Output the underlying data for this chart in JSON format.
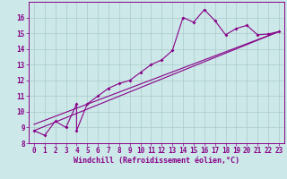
{
  "xlabel": "Windchill (Refroidissement éolien,°C)",
  "background_color": "#cce8e8",
  "line_color": "#880088",
  "grid_color": "#aacccc",
  "xlim": [
    -0.5,
    23.5
  ],
  "ylim": [
    8,
    17
  ],
  "yticks": [
    8,
    9,
    10,
    11,
    12,
    13,
    14,
    15,
    16
  ],
  "xticks": [
    0,
    1,
    2,
    3,
    4,
    5,
    6,
    7,
    8,
    9,
    10,
    11,
    12,
    13,
    14,
    15,
    16,
    17,
    18,
    19,
    20,
    21,
    22,
    23
  ],
  "series1_x": [
    0,
    1,
    2,
    3,
    4,
    4,
    5,
    6,
    7,
    8,
    9,
    10,
    11,
    12,
    13,
    14,
    15,
    16,
    17,
    18,
    19,
    20,
    21,
    22,
    23
  ],
  "series1_y": [
    8.8,
    8.5,
    9.4,
    9.0,
    10.5,
    8.8,
    10.5,
    11.0,
    11.5,
    11.8,
    12.0,
    12.5,
    13.0,
    13.3,
    13.9,
    16.0,
    15.7,
    16.5,
    15.8,
    14.9,
    15.3,
    15.5,
    14.9,
    14.95,
    15.1
  ],
  "series2_x": [
    0,
    23
  ],
  "series2_y": [
    8.8,
    15.1
  ],
  "series3_x": [
    0,
    23
  ],
  "series3_y": [
    9.2,
    15.1
  ],
  "xlabel_fontsize": 6,
  "tick_fontsize": 5.5
}
